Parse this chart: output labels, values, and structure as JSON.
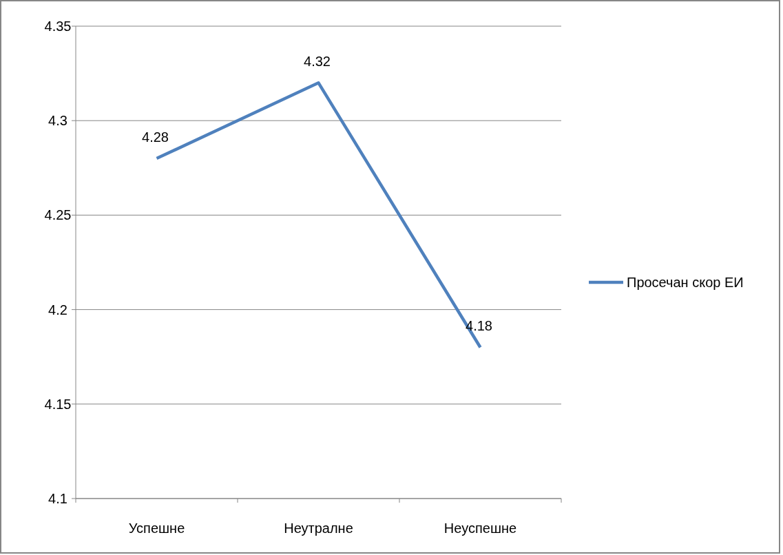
{
  "chart_data": {
    "type": "line",
    "categories": [
      "Успешне",
      "Неутралне",
      "Неуспешне"
    ],
    "series": [
      {
        "name": "Просечан скор ЕИ",
        "color": "#4f81bd",
        "values": [
          4.28,
          4.32,
          4.18
        ]
      }
    ],
    "ylim": [
      4.1,
      4.35
    ],
    "yticks": [
      4.1,
      4.15,
      4.2,
      4.25,
      4.3,
      4.35
    ],
    "grid": "y",
    "legend": "right",
    "data_labels": true,
    "marker": "none"
  }
}
